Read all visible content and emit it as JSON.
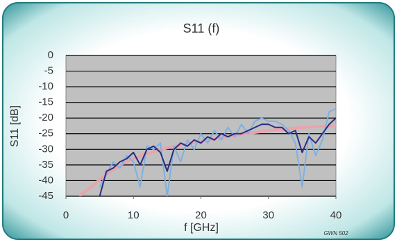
{
  "chart_data": {
    "type": "line",
    "title": "S11 (f)",
    "x_label": "f [GHz]",
    "y_label": "S11 [dB]",
    "annotation": "GWN 502",
    "xlim": [
      0,
      40
    ],
    "xticks": [
      0,
      10,
      20,
      30,
      40
    ],
    "ylim": [
      -45,
      0
    ],
    "yticks": [
      0,
      -5,
      -10,
      -15,
      -20,
      -25,
      -30,
      -35,
      -40,
      -45
    ],
    "grid": true,
    "background": "#c0c0c0",
    "series": [
      {
        "color": "#e9a3ab",
        "x": [
          2,
          4,
          6,
          8,
          10,
          12,
          15,
          20,
          25,
          30,
          35,
          40
        ],
        "values": [
          -45,
          -41.5,
          -38,
          -35,
          -33,
          -31.5,
          -29.5,
          -27.5,
          -25.5,
          -24,
          -23,
          -22.5
        ]
      },
      {
        "color": "#7fb0e0",
        "x": [
          5,
          6,
          7,
          8,
          9,
          10,
          11,
          12,
          13,
          14,
          15,
          16,
          17,
          18,
          19,
          20,
          21,
          22,
          23,
          24,
          25,
          26,
          27,
          28,
          29,
          30,
          31,
          32,
          33,
          34,
          35,
          36,
          37,
          38,
          39,
          40
        ],
        "values": [
          -42,
          -38,
          -34,
          -36,
          -32,
          -34,
          -42,
          -29,
          -30,
          -28,
          -45,
          -29,
          -34,
          -27,
          -30,
          -25,
          -28,
          -24,
          -27,
          -23,
          -26,
          -22,
          -25,
          -21,
          -20,
          -21,
          -21,
          -22,
          -24,
          -28,
          -42,
          -25,
          -32,
          -27,
          -18,
          -17
        ]
      },
      {
        "color": "#2b2b85",
        "x": [
          5,
          6,
          7,
          8,
          9,
          10,
          11,
          12,
          13,
          14,
          15,
          16,
          17,
          18,
          19,
          20,
          21,
          22,
          23,
          24,
          25,
          26,
          27,
          28,
          29,
          30,
          31,
          32,
          33,
          34,
          35,
          36,
          37,
          38,
          39,
          40
        ],
        "values": [
          -45,
          -37,
          -36,
          -34,
          -33,
          -31,
          -35,
          -30,
          -29,
          -31,
          -37,
          -30,
          -28,
          -29,
          -27,
          -28,
          -26,
          -27,
          -25,
          -26,
          -25,
          -25,
          -24,
          -23,
          -22,
          -22,
          -23,
          -23,
          -25,
          -24,
          -31,
          -26,
          -28,
          -25,
          -22,
          -20
        ]
      }
    ]
  }
}
